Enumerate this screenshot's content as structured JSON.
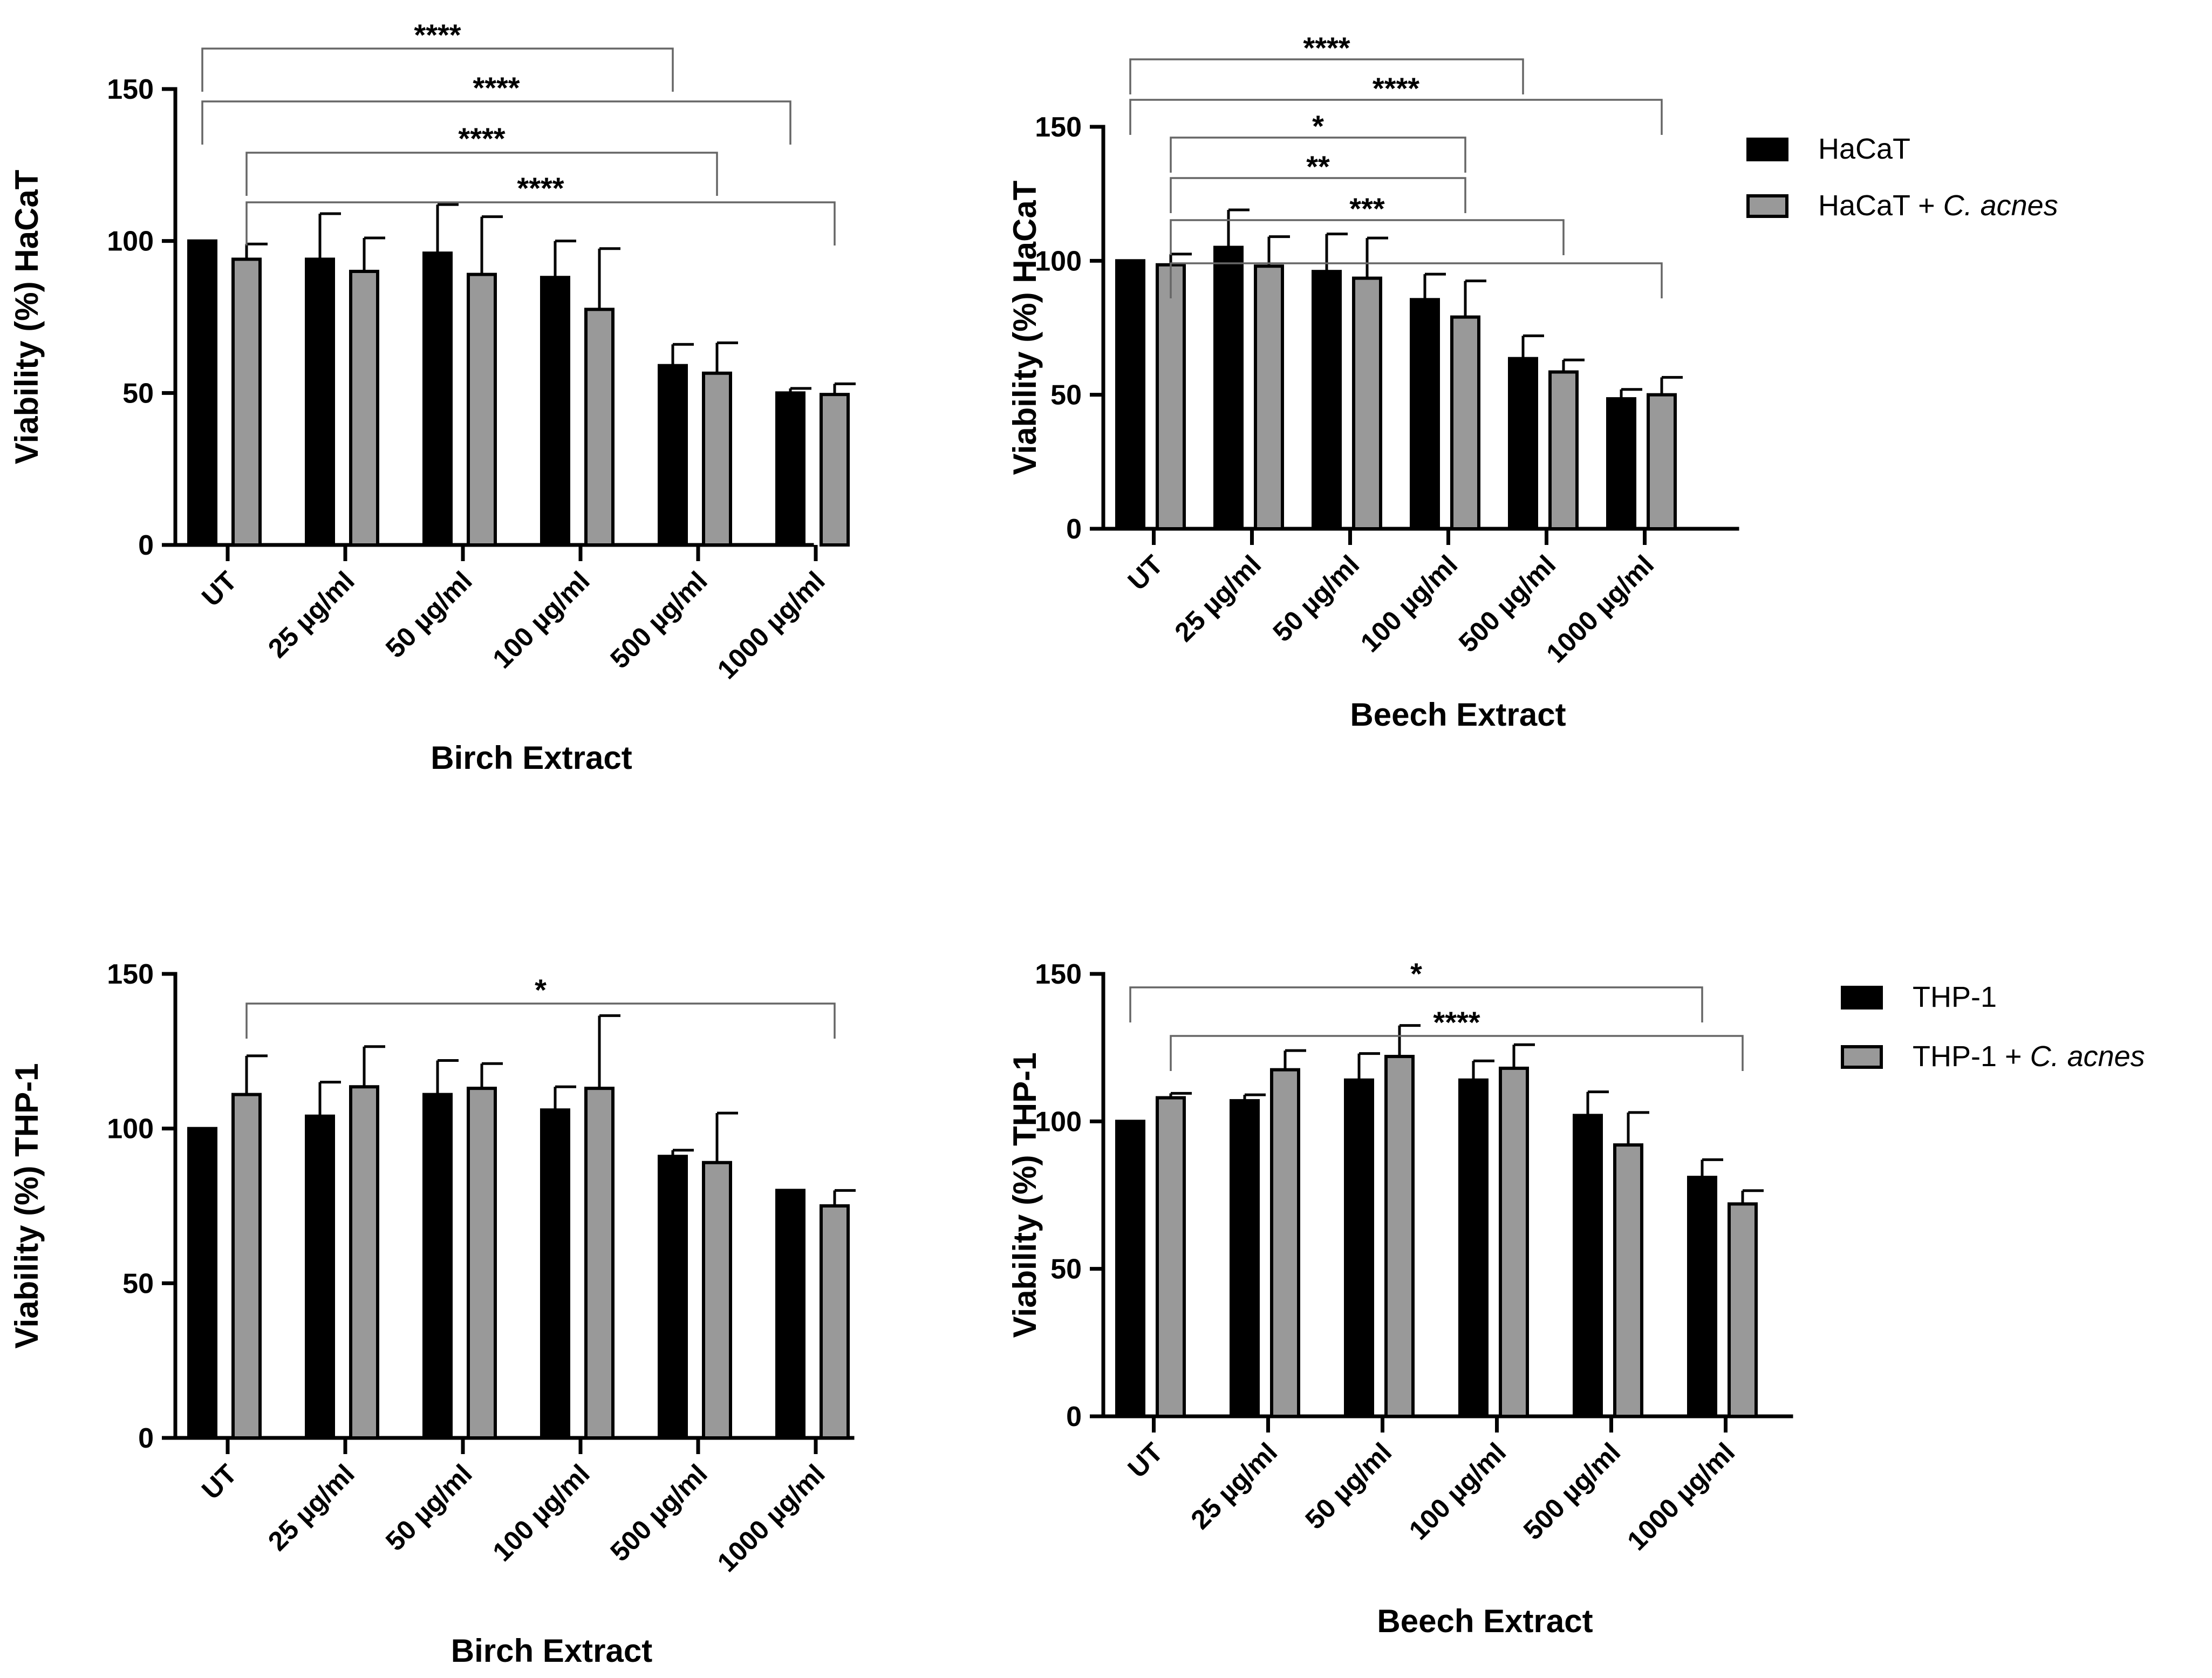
{
  "colors": {
    "untreated_bar": "#000000",
    "cacnes_bar": "#999999",
    "axis": "#000000",
    "bracket": "#666666"
  },
  "legends": [
    {
      "id": "haca",
      "entries": [
        {
          "label": "HaCaT",
          "color": "#000000"
        },
        {
          "label_prefix": "HaCaT + ",
          "label_italic": "C. acnes",
          "color": "#999999"
        }
      ]
    },
    {
      "id": "thp",
      "entries": [
        {
          "label": "THP-1",
          "color": "#000000"
        },
        {
          "label_prefix": "THP-1 + ",
          "label_italic": "C. acnes",
          "color": "#999999"
        }
      ]
    }
  ],
  "chart_data": [
    {
      "type": "bar",
      "panel": "top-left",
      "xlabel": "Birch Extract",
      "ylabel": "Viability (%) HaCaT",
      "ylim": [
        0,
        150
      ],
      "yticks": [
        0,
        50,
        100,
        150
      ],
      "categories": [
        "UT",
        "25 µg/ml",
        "50 µg/ml",
        "100 µg/ml",
        "500 µg/ml",
        "1000 µg/ml"
      ],
      "series": [
        {
          "name": "HaCaT",
          "values": [
            100,
            94,
            96,
            88,
            59,
            50
          ],
          "errors": [
            0,
            15,
            16,
            12,
            7,
            1.5
          ]
        },
        {
          "name": "HaCaT + C. acnes",
          "values": [
            94,
            90,
            89,
            77.5,
            56.5,
            49.5
          ],
          "errors": [
            5,
            11,
            19,
            20,
            10,
            3.5
          ]
        }
      ],
      "significance": [
        {
          "from": [
            0,
            0
          ],
          "to": [
            4,
            0
          ],
          "label": "****"
        },
        {
          "from": [
            0,
            0
          ],
          "to": [
            5,
            0
          ],
          "label": "****"
        },
        {
          "from": [
            0,
            1
          ],
          "to": [
            4,
            1
          ],
          "label": "****"
        },
        {
          "from": [
            0,
            1
          ],
          "to": [
            5,
            1
          ],
          "label": "****"
        }
      ]
    },
    {
      "type": "bar",
      "panel": "top-right",
      "xlabel": "Beech Extract",
      "ylabel": "Viability (%) HaCaT",
      "ylim": [
        0,
        150
      ],
      "yticks": [
        0,
        50,
        100,
        150
      ],
      "categories": [
        "UT",
        "25 µg/ml",
        "50 µg/ml",
        "100 µg/ml",
        "500 µg/ml",
        "1000 µg/ml"
      ],
      "series": [
        {
          "name": "HaCaT",
          "values": [
            100,
            105,
            96,
            85.5,
            63.5,
            48.5
          ],
          "errors": [
            0,
            14,
            14,
            9.5,
            8.5,
            3.5
          ]
        },
        {
          "name": "HaCaT + C. acnes",
          "values": [
            98.5,
            98,
            93.5,
            79,
            58.5,
            50
          ],
          "errors": [
            4,
            11,
            15,
            13.5,
            4.5,
            6.5
          ]
        }
      ],
      "significance": [
        {
          "from": [
            0,
            0
          ],
          "to": [
            4,
            0
          ],
          "label": "****"
        },
        {
          "from": [
            0,
            0
          ],
          "to": [
            5,
            1
          ],
          "label": "****"
        },
        {
          "from": [
            0,
            1
          ],
          "to": [
            3,
            1
          ],
          "label": "*"
        },
        {
          "from": [
            0,
            1
          ],
          "to": [
            3,
            1
          ],
          "label": "**"
        },
        {
          "from": [
            0,
            1
          ],
          "to": [
            4,
            1
          ],
          "label": "***"
        },
        {
          "from": [
            0,
            1
          ],
          "to": [
            5,
            1
          ],
          "label": ""
        }
      ],
      "legend": "haca"
    },
    {
      "type": "bar",
      "panel": "bottom-left",
      "xlabel": "Birch Extract",
      "ylabel": "Viability (%) THP-1",
      "ylim": [
        0,
        150
      ],
      "yticks": [
        0,
        50,
        100,
        150
      ],
      "categories": [
        "UT",
        "25 µg/ml",
        "50 µg/ml",
        "100 µg/ml",
        "500 µg/ml",
        "1000 µg/ml"
      ],
      "series": [
        {
          "name": "THP-1",
          "values": [
            100,
            104,
            111,
            106,
            91,
            80
          ],
          "errors": [
            0,
            11,
            11,
            7.5,
            2,
            0
          ]
        },
        {
          "name": "THP-1 + C. acnes",
          "values": [
            111,
            113.5,
            113,
            113,
            89,
            75
          ],
          "errors": [
            12.5,
            13,
            8,
            23.5,
            16,
            5
          ]
        }
      ],
      "significance": [
        {
          "from": [
            0,
            1
          ],
          "to": [
            5,
            1
          ],
          "label": "*"
        }
      ]
    },
    {
      "type": "bar",
      "panel": "bottom-right",
      "xlabel": "Beech Extract",
      "ylabel": "Viability (%) THP-1",
      "ylim": [
        0,
        150
      ],
      "yticks": [
        0,
        50,
        100,
        150
      ],
      "categories": [
        "UT",
        "25 µg/ml",
        "50 µg/ml",
        "100 µg/ml",
        "500 µg/ml",
        "1000 µg/ml"
      ],
      "series": [
        {
          "name": "THP-1",
          "values": [
            100,
            107,
            114,
            114,
            102,
            81
          ],
          "errors": [
            0,
            2,
            9,
            6.5,
            8,
            6
          ]
        },
        {
          "name": "THP-1 + C. acnes",
          "values": [
            108,
            117.5,
            122,
            118,
            92,
            72
          ],
          "errors": [
            1.5,
            6.5,
            10.5,
            8,
            11,
            4.5
          ]
        }
      ],
      "significance": [
        {
          "from": [
            0,
            0
          ],
          "to": [
            5,
            0
          ],
          "label": "*"
        },
        {
          "from": [
            0,
            1
          ],
          "to": [
            5,
            1
          ],
          "label": "****"
        }
      ],
      "legend": "thp"
    }
  ]
}
